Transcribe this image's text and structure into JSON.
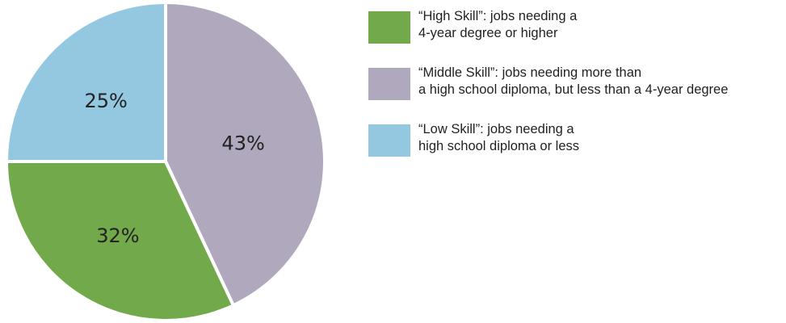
{
  "chart_data": {
    "type": "pie",
    "start_angle_deg": 0,
    "direction": "clockwise",
    "slices": [
      {
        "label": "“Middle Skill”",
        "value": 43,
        "value_label": "43%",
        "color": "#b0a8bd"
      },
      {
        "label": "“High Skill”",
        "value": 32,
        "value_label": "32%",
        "color": "#72a94a"
      },
      {
        "label": "“Low Skill”",
        "value": 25,
        "value_label": "25%",
        "color": "#93c8e0"
      }
    ],
    "legend_placement": "right",
    "legend": [
      {
        "line1": "“High Skill”: jobs needing a",
        "line2": "4-year degree or higher",
        "color": "#72a94a"
      },
      {
        "line1": "“Middle Skill”: jobs needing more than",
        "line2": "a high school diploma, but less than a 4-year degree",
        "color": "#b0a8bd"
      },
      {
        "line1": "“Low Skill”: jobs needing a",
        "line2": "high school diploma or less",
        "color": "#93c8e0"
      }
    ]
  }
}
